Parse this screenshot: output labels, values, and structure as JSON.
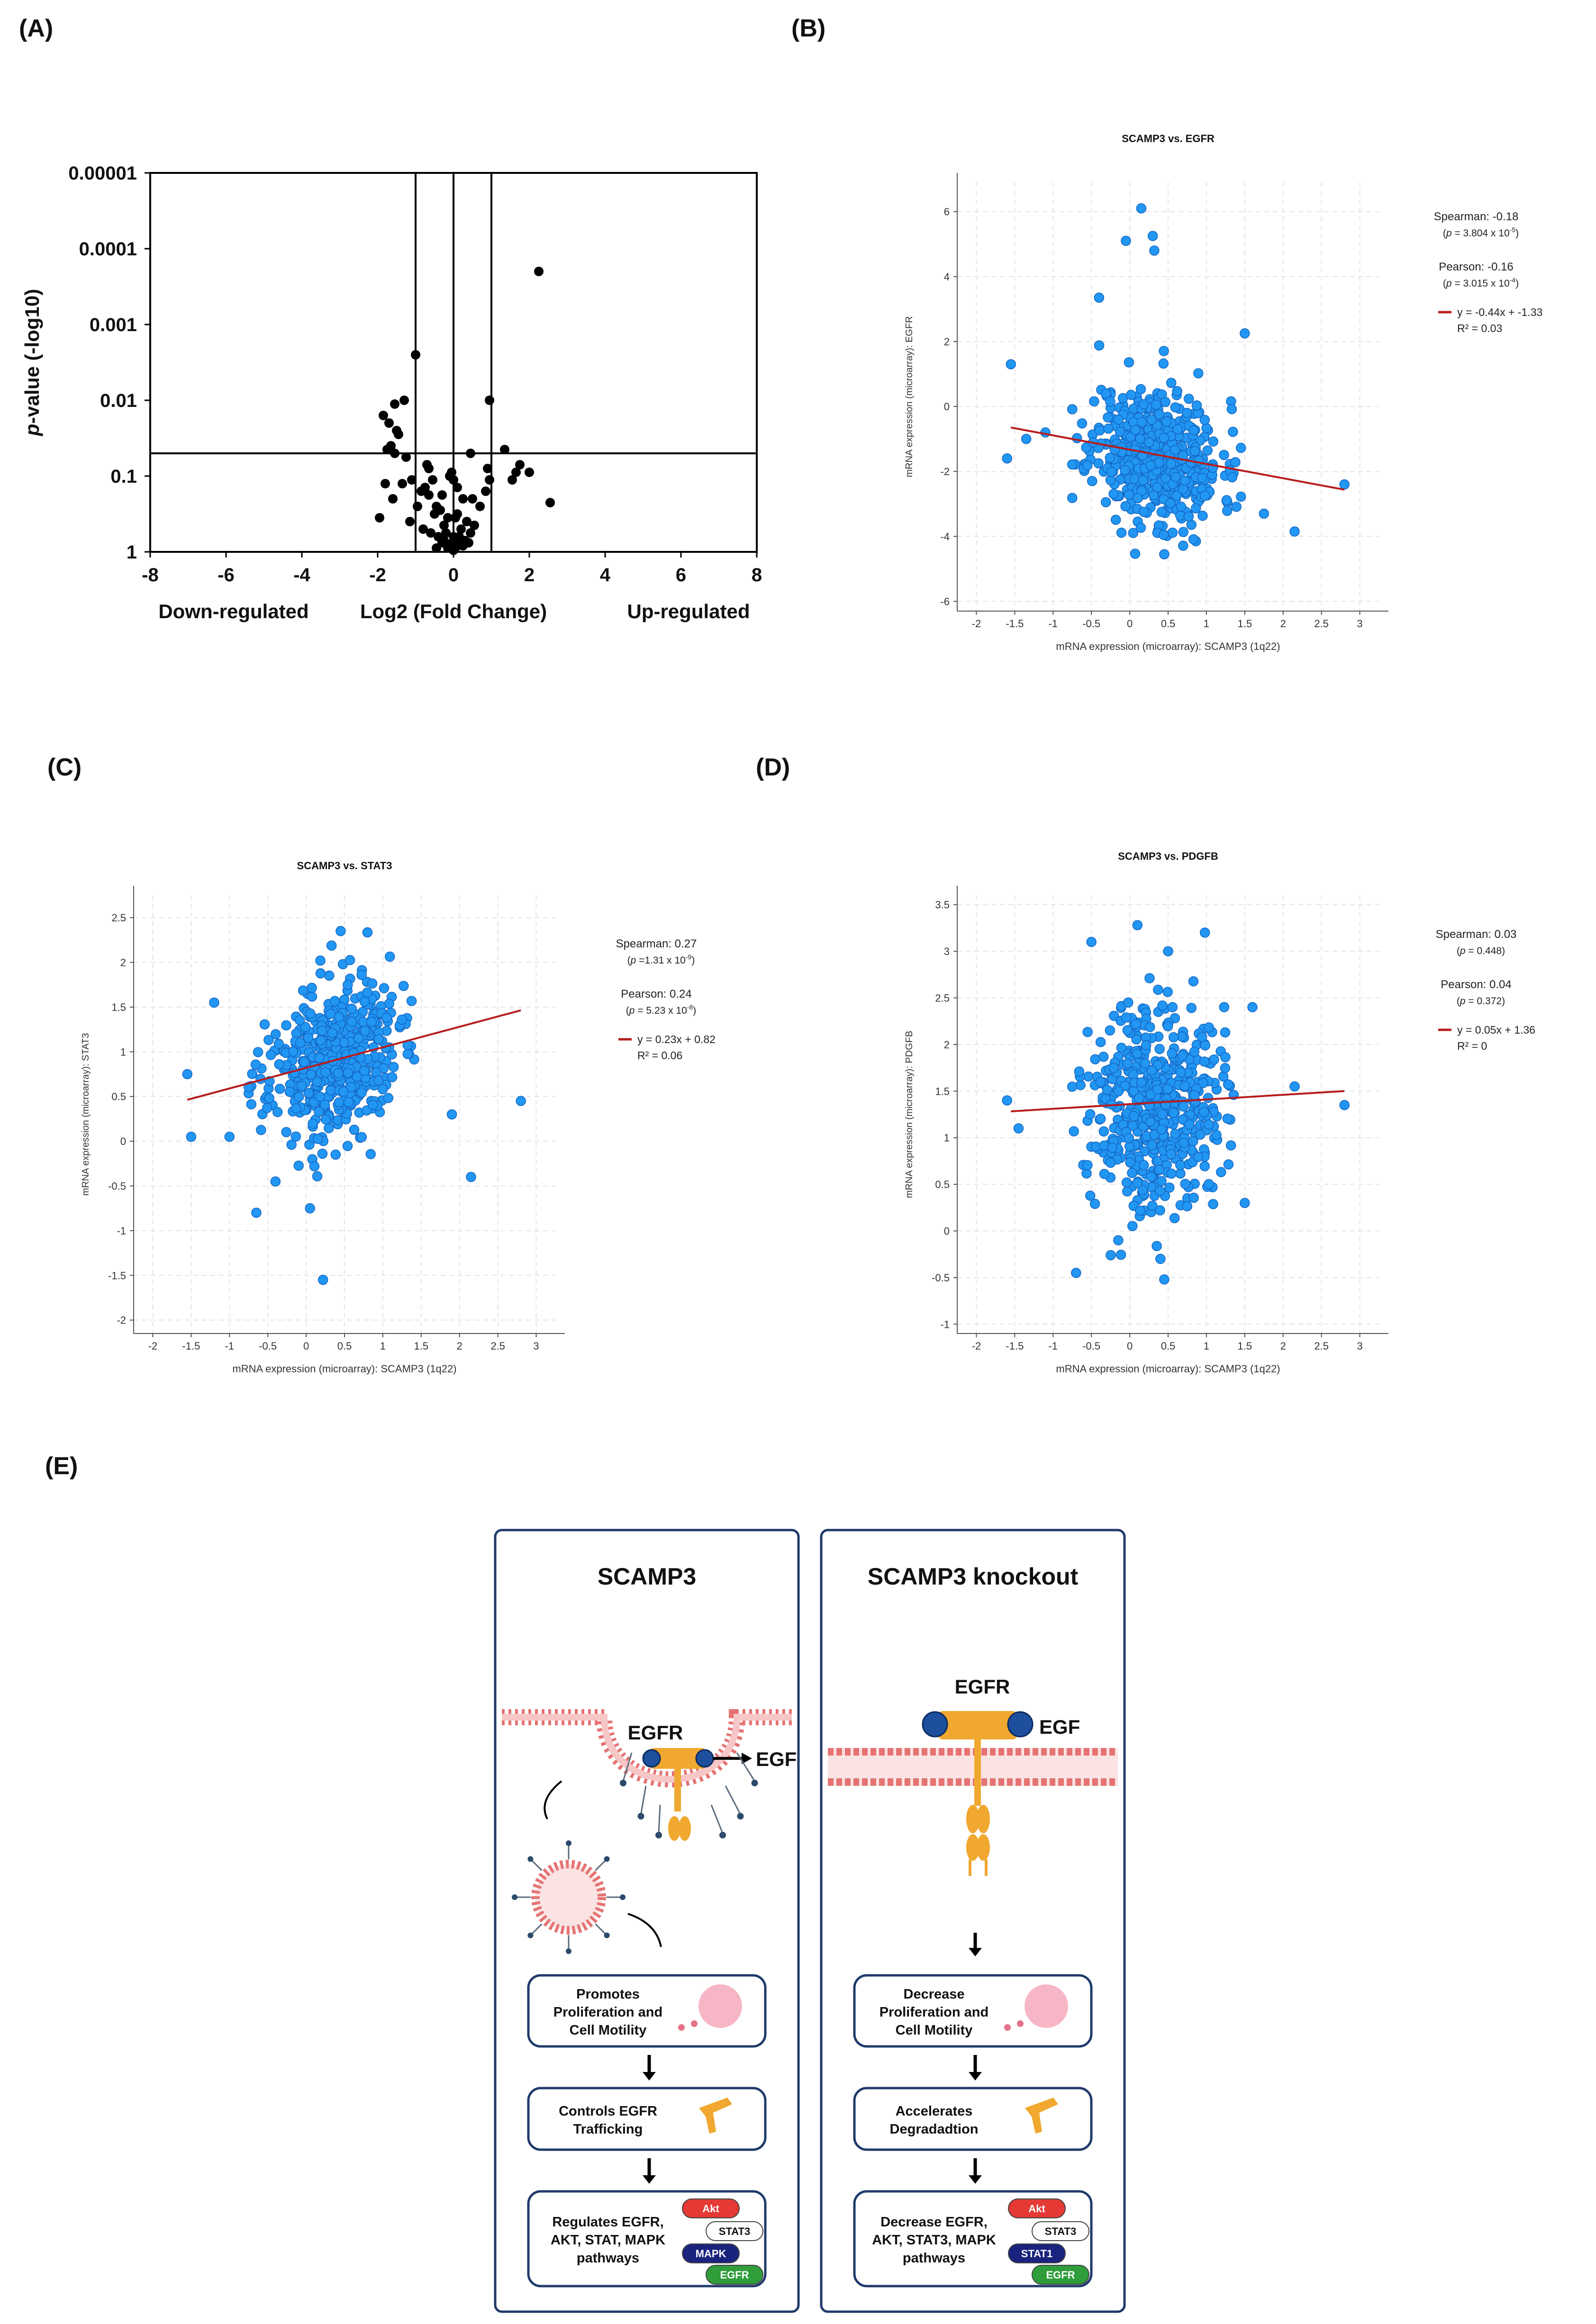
{
  "panel_labels": {
    "a": "(A)",
    "b": "(B)",
    "c": "(C)",
    "d": "(D)",
    "e": "(E)"
  },
  "chart_data": [
    {
      "panel": "A",
      "type": "scatter",
      "title": "",
      "xlabel": "Log2 (Fold Change)",
      "ylabel": "p-value (-log10)",
      "ylabel_italic": "p",
      "ylabel_rest": "-value (-log10)",
      "xlim": [
        -8,
        8
      ],
      "x_ticks": [
        -8,
        -6,
        -4,
        -2,
        0,
        2,
        4,
        6,
        8
      ],
      "x_tick_labels": [
        "-8",
        "-6",
        "-4",
        "-2",
        "0",
        "2",
        "4",
        "6",
        "8"
      ],
      "y_ticks": [
        0,
        1,
        2,
        3,
        4,
        5
      ],
      "y_tick_labels": [
        "1",
        "0.1",
        "0.01",
        "0.001",
        "0.0001",
        "0.00001"
      ],
      "ylim": [
        0,
        5
      ],
      "left_label": "Down-regulated",
      "right_label": "Up-regulated",
      "threshold_lines": {
        "vertical": [
          -1,
          0,
          1
        ],
        "horizontal": [
          1.3
        ]
      },
      "color": "#000000",
      "x": [
        2.25,
        -1.0,
        0.95,
        -1.3,
        -1.55,
        -1.7,
        -1.85,
        -1.45,
        -1.65,
        -1.75,
        -1.55,
        -1.25,
        -0.7,
        -0.65,
        0.45,
        0.9,
        0.95,
        0.85,
        1.35,
        1.55,
        1.65,
        1.75,
        2.0,
        2.55,
        -1.95,
        -1.6,
        -1.35,
        -1.1,
        -0.85,
        -0.75,
        -0.45,
        -0.3,
        0.1,
        0.25,
        0.5,
        0.7,
        -0.95,
        -1.15,
        -0.55,
        -0.5,
        -0.35,
        -0.25,
        -0.15,
        0.05,
        0.2,
        0.35,
        0.55,
        -0.8,
        -0.6,
        -0.4,
        -0.2,
        0.0,
        0.15,
        0.3,
        0.45,
        -1.5,
        -1.8,
        -0.05,
        -0.1,
        0.0,
        0.1,
        -0.25,
        0.2,
        -0.45,
        0.4,
        -0.65,
        -0.15,
        0.05,
        0.25,
        -0.3,
        -0.1,
        0.0,
        0.08
      ],
      "y": [
        3.7,
        2.6,
        2.0,
        2.0,
        1.95,
        1.7,
        1.8,
        1.55,
        1.4,
        1.35,
        1.3,
        1.25,
        1.15,
        1.1,
        1.3,
        1.1,
        0.95,
        0.8,
        1.35,
        0.95,
        1.05,
        1.15,
        1.05,
        0.65,
        0.45,
        0.7,
        0.9,
        0.95,
        0.8,
        0.85,
        0.6,
        0.75,
        0.85,
        0.7,
        0.7,
        0.6,
        0.6,
        0.4,
        0.95,
        0.5,
        0.55,
        0.35,
        0.45,
        0.45,
        0.3,
        0.4,
        0.35,
        0.3,
        0.25,
        0.2,
        0.25,
        0.2,
        0.2,
        0.15,
        0.25,
        1.6,
        0.9,
        1.05,
        1.0,
        0.95,
        0.5,
        0.15,
        0.1,
        0.05,
        0.12,
        0.75,
        0.05,
        0.05,
        0.08,
        0.12,
        0.1,
        0.02,
        0.15
      ]
    },
    {
      "panel": "B",
      "type": "scatter",
      "title": "SCAMP3 vs. EGFR",
      "xlabel": "mRNA expression (microarray): SCAMP3 (1q22)",
      "ylabel": "mRNA expression (microarray): EGFR",
      "xlim": [
        -2.25,
        3.25
      ],
      "ylim": [
        -6.3,
        6.9
      ],
      "x_ticks": [
        -2,
        -1.5,
        -1,
        -0.5,
        0,
        0.5,
        1,
        1.5,
        2,
        2.5,
        3
      ],
      "x_tick_labels": [
        "-2",
        "-1.5",
        "-1",
        "-0.5",
        "0",
        "0.5",
        "1",
        "1.5",
        "2",
        "2.5",
        "3"
      ],
      "y_ticks": [
        -6,
        -4,
        -2,
        0,
        2,
        4,
        6
      ],
      "y_tick_labels": [
        "-6",
        "-4",
        "-2",
        "0",
        "2",
        "4",
        "6"
      ],
      "cloud": {
        "n": 520,
        "x_mean": 0.35,
        "x_sd": 0.42,
        "y_mean": -1.5,
        "y_sd": 1.05,
        "slope": -0.44,
        "seed": 11
      },
      "outliers": {
        "x": [
          0.15,
          0.3,
          0.32,
          -0.05,
          -0.4,
          1.5,
          2.8,
          -1.55,
          -1.6,
          -1.35,
          2.15,
          1.75,
          -1.1,
          0.45
        ],
        "y": [
          6.1,
          5.25,
          4.8,
          5.1,
          3.35,
          2.25,
          -2.4,
          1.3,
          -1.6,
          -1.0,
          -3.85,
          -3.3,
          -0.8,
          -4.55
        ]
      },
      "regression": {
        "slope": -0.44,
        "intercept": -1.33,
        "x_range": [
          -1.55,
          2.8
        ]
      },
      "legend": {
        "spearman": "Spearman: -0.18",
        "spearman_p_pre": "(",
        "spearman_p_italic": "p",
        "spearman_p_post": " = 3.804 x 10",
        "spearman_p_exp": "-5",
        "spearman_p_close": ")",
        "pearson": "Pearson: -0.16",
        "pearson_p_pre": "(",
        "pearson_p_italic": "p",
        "pearson_p_post": " = 3.015 x 10",
        "pearson_p_exp": "-4",
        "pearson_p_close": ")",
        "equation": "y = -0.44x + -1.33",
        "r2": "R² = 0.03"
      },
      "point_color": "#2196f3",
      "point_edge": "#1565c0",
      "line_color": "#b71c1c"
    },
    {
      "panel": "C",
      "type": "scatter",
      "title": "SCAMP3 vs. STAT3",
      "xlabel": "mRNA expression (microarray): SCAMP3 (1q22)",
      "ylabel": "mRNA expression (microarray): STAT3",
      "xlim": [
        -2.25,
        3.25
      ],
      "ylim": [
        -2.15,
        2.75
      ],
      "x_ticks": [
        -2,
        -1.5,
        -1,
        -0.5,
        0,
        0.5,
        1,
        1.5,
        2,
        2.5,
        3
      ],
      "x_tick_labels": [
        "-2",
        "-1.5",
        "-1",
        "-0.5",
        "0",
        "0.5",
        "1",
        "1.5",
        "2",
        "2.5",
        "3"
      ],
      "y_ticks": [
        -2,
        -1.5,
        -1,
        -0.5,
        0,
        0.5,
        1,
        1.5,
        2,
        2.5
      ],
      "y_tick_labels": [
        "-2",
        "-1.5",
        "-1",
        "-0.5",
        "0",
        "0.5",
        "1",
        "1.5",
        "2",
        "2.5"
      ],
      "cloud": {
        "n": 520,
        "x_mean": 0.35,
        "x_sd": 0.42,
        "y_mean": 0.9,
        "y_sd": 0.42,
        "slope": 0.23,
        "seed": 23
      },
      "outliers": {
        "x": [
          0.22,
          -0.65,
          0.05,
          2.15,
          2.8,
          0.45,
          -1.55,
          -1.5,
          -1.0,
          -0.4,
          1.9,
          -1.2
        ],
        "y": [
          -1.55,
          -0.8,
          -0.75,
          -0.4,
          0.45,
          2.35,
          0.75,
          0.05,
          0.05,
          -0.45,
          0.3,
          1.55
        ]
      },
      "regression": {
        "slope": 0.23,
        "intercept": 0.82,
        "x_range": [
          -1.55,
          2.8
        ]
      },
      "legend": {
        "spearman": "Spearman: 0.27",
        "spearman_p_pre": "(",
        "spearman_p_italic": "p",
        "spearman_p_post": " =1.31 x 10",
        "spearman_p_exp": "-9",
        "spearman_p_close": ")",
        "pearson": "Pearson: 0.24",
        "pearson_p_pre": "(",
        "pearson_p_italic": "p",
        "pearson_p_post": " = 5.23 x 10",
        "pearson_p_exp": "-8",
        "pearson_p_close": ")",
        "equation": "y = 0.23x + 0.82",
        "r2": "R² = 0.06"
      },
      "point_color": "#2196f3",
      "point_edge": "#1565c0",
      "line_color": "#b71c1c"
    },
    {
      "panel": "D",
      "type": "scatter",
      "title": "SCAMP3 vs. PDGFB",
      "xlabel": "mRNA expression (microarray): SCAMP3 (1q22)",
      "ylabel": "mRNA expression (microarray): PDGFB",
      "xlim": [
        -2.25,
        3.25
      ],
      "ylim": [
        -1.1,
        3.6
      ],
      "x_ticks": [
        -2,
        -1.5,
        -1,
        -0.5,
        0,
        0.5,
        1,
        1.5,
        2,
        2.5,
        3
      ],
      "x_tick_labels": [
        "-2",
        "-1.5",
        "-1",
        "-0.5",
        "0",
        "0.5",
        "1",
        "1.5",
        "2",
        "2.5",
        "3"
      ],
      "y_ticks": [
        -1,
        -0.5,
        0,
        0.5,
        1,
        1.5,
        2,
        2.5,
        3,
        3.5
      ],
      "y_tick_labels": [
        "-1",
        "-0.5",
        "0",
        "0.5",
        "1",
        "1.5",
        "2",
        "2.5",
        "3",
        "3.5"
      ],
      "cloud": {
        "n": 520,
        "x_mean": 0.35,
        "x_sd": 0.42,
        "y_mean": 1.38,
        "y_sd": 0.55,
        "slope": 0.05,
        "seed": 37
      },
      "outliers": {
        "x": [
          0.1,
          0.98,
          0.5,
          -0.5,
          -1.6,
          -1.45,
          2.8,
          2.15,
          1.5,
          0.45,
          -0.7,
          -0.15,
          0.4,
          1.6
        ],
        "y": [
          3.28,
          3.2,
          3.0,
          3.1,
          1.4,
          1.1,
          1.35,
          1.55,
          0.3,
          -0.52,
          -0.45,
          -0.1,
          -0.3,
          2.4
        ]
      },
      "regression": {
        "slope": 0.05,
        "intercept": 1.36,
        "x_range": [
          -1.55,
          2.8
        ]
      },
      "legend": {
        "spearman": "Spearman: 0.03",
        "spearman_p_pre": "(",
        "spearman_p_italic": "p",
        "spearman_p_post": " = 0.448)",
        "spearman_p_exp": "",
        "spearman_p_close": "",
        "pearson": "Pearson: 0.04",
        "pearson_p_pre": "(",
        "pearson_p_italic": "p",
        "pearson_p_post": " = 0.372)",
        "pearson_p_exp": "",
        "pearson_p_close": "",
        "equation": "y = 0.05x + 1.36",
        "r2": "R² = 0"
      },
      "point_color": "#2196f3",
      "point_edge": "#1565c0",
      "line_color": "#b71c1c"
    }
  ],
  "diagram": {
    "left": {
      "title": "SCAMP3",
      "egfr_label": "EGFR",
      "egf_label": "EGF",
      "box1": [
        "Promotes",
        "Proliferation and",
        "Cell Motility"
      ],
      "box2": [
        "Controls EGFR",
        "Trafficking"
      ],
      "box3": [
        "Regulates EGFR,",
        "AKT, STAT, MAPK",
        "pathways"
      ],
      "pills": [
        "Akt",
        "STAT3",
        "MAPK",
        "EGFR"
      ]
    },
    "right": {
      "title": "SCAMP3 knockout",
      "egfr_label": "EGFR",
      "egf_label": "EGF",
      "box1": [
        "Decrease",
        "Proliferation and",
        "Cell Motility"
      ],
      "box2": [
        "Accelerates",
        "Degradadtion"
      ],
      "box3": [
        "Decrease EGFR,",
        "AKT, STAT3, MAPK",
        "pathways"
      ],
      "pills": [
        "Akt",
        "STAT3",
        "STAT1",
        "EGFR"
      ]
    },
    "colors": {
      "frame": "#1f3a6b",
      "membrane": "#e57373",
      "receptor": "#f0a830",
      "ligand": "#1e4f9c",
      "akt": "#e53935",
      "mapk": "#1a237e",
      "egfr_pill": "#2e9d3a",
      "stat": "#ffffff"
    }
  }
}
